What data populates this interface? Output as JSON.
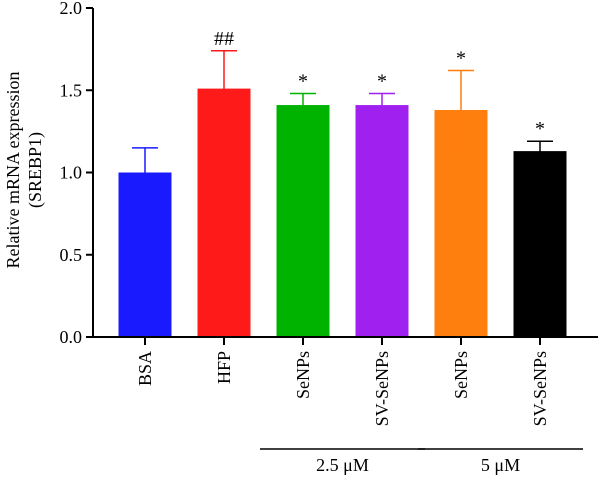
{
  "chart_data": {
    "type": "bar",
    "categories": [
      "BSA",
      "HFP",
      "SeNPs",
      "SV-SeNPs",
      "SeNPs",
      "SV-SeNPs"
    ],
    "values": [
      1.0,
      1.51,
      1.41,
      1.41,
      1.38,
      1.13
    ],
    "errors": [
      0.15,
      0.23,
      0.07,
      0.07,
      0.24,
      0.06
    ],
    "significance": [
      "",
      "##",
      "*",
      "*",
      "*",
      "*"
    ],
    "colors": [
      "#1a1aff",
      "#ff1a1a",
      "#00b300",
      "#a020f0",
      "#ff7f0e",
      "#000000"
    ],
    "ylabel_line1": "Relative mRNA expression",
    "ylabel_line2": "(SREBP1)",
    "ylim": [
      0,
      2.0
    ],
    "yticks": [
      "0.0",
      "0.5",
      "1.0",
      "1.5",
      "2.0"
    ],
    "groups": [
      {
        "label": "2.5 μM",
        "categories": [
          2,
          3
        ]
      },
      {
        "label": "5 μM",
        "categories": [
          4,
          5
        ]
      }
    ]
  }
}
